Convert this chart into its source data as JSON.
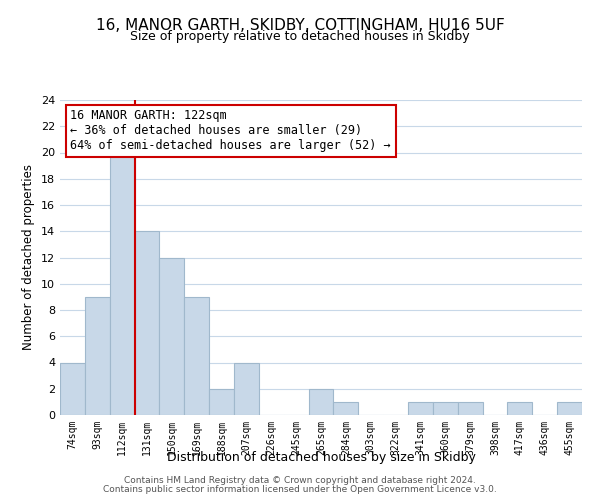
{
  "title": "16, MANOR GARTH, SKIDBY, COTTINGHAM, HU16 5UF",
  "subtitle": "Size of property relative to detached houses in Skidby",
  "xlabel": "Distribution of detached houses by size in Skidby",
  "ylabel": "Number of detached properties",
  "bar_labels": [
    "74sqm",
    "93sqm",
    "112sqm",
    "131sqm",
    "150sqm",
    "169sqm",
    "188sqm",
    "207sqm",
    "226sqm",
    "245sqm",
    "265sqm",
    "284sqm",
    "303sqm",
    "322sqm",
    "341sqm",
    "360sqm",
    "379sqm",
    "398sqm",
    "417sqm",
    "436sqm",
    "455sqm"
  ],
  "bar_values": [
    4,
    9,
    20,
    14,
    12,
    9,
    2,
    4,
    0,
    0,
    2,
    1,
    0,
    0,
    1,
    1,
    1,
    0,
    1,
    0,
    1
  ],
  "bar_color": "#c8d8e8",
  "bar_edge_color": "#a0b8cc",
  "vline_color": "#cc0000",
  "annotation_line1": "16 MANOR GARTH: 122sqm",
  "annotation_line2": "← 36% of detached houses are smaller (29)",
  "annotation_line3": "64% of semi-detached houses are larger (52) →",
  "ylim": [
    0,
    24
  ],
  "yticks": [
    0,
    2,
    4,
    6,
    8,
    10,
    12,
    14,
    16,
    18,
    20,
    22,
    24
  ],
  "footer_line1": "Contains HM Land Registry data © Crown copyright and database right 2024.",
  "footer_line2": "Contains public sector information licensed under the Open Government Licence v3.0.",
  "background_color": "#ffffff",
  "grid_color": "#c8d8e8"
}
